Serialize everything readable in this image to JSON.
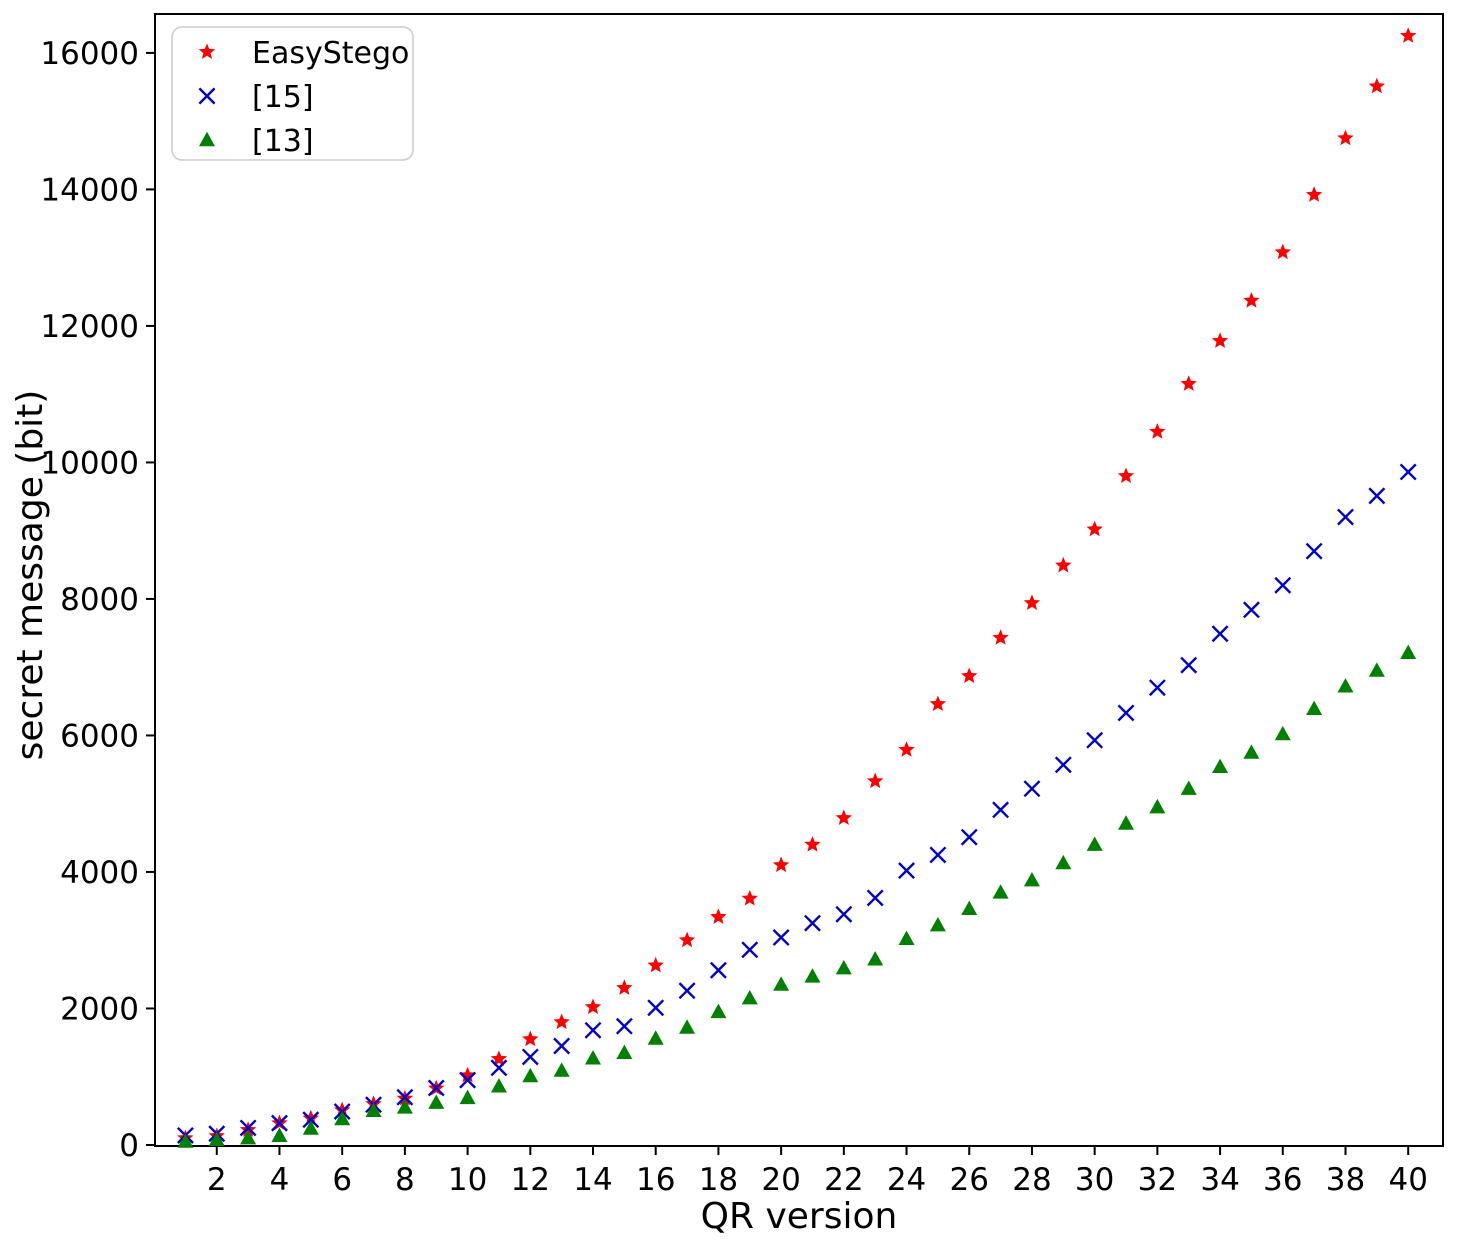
{
  "chart_data": {
    "type": "scatter",
    "title": "",
    "xlabel": "QR version",
    "ylabel": "secret message (bit)",
    "grid": false,
    "legend_position": "upper-left",
    "xlim": [
      0.03,
      41.11
    ],
    "ylim": [
      -15,
      16570
    ],
    "xticks": [
      2,
      4,
      6,
      8,
      10,
      12,
      14,
      16,
      18,
      20,
      22,
      24,
      26,
      28,
      30,
      32,
      34,
      36,
      38,
      40
    ],
    "yticks": [
      0,
      2000,
      4000,
      6000,
      8000,
      10000,
      12000,
      14000,
      16000
    ],
    "x": [
      1,
      2,
      3,
      4,
      5,
      6,
      7,
      8,
      9,
      10,
      11,
      12,
      13,
      14,
      15,
      16,
      17,
      18,
      19,
      20,
      21,
      22,
      23,
      24,
      25,
      26,
      27,
      28,
      29,
      30,
      31,
      32,
      33,
      34,
      35,
      36,
      37,
      38,
      39,
      40
    ],
    "series": [
      {
        "name": "EasyStego",
        "marker": "star",
        "color": "#ff0000",
        "values": [
          100,
          130,
          220,
          320,
          390,
          510,
          600,
          680,
          830,
          1020,
          1260,
          1550,
          1800,
          2020,
          2300,
          2630,
          3000,
          3340,
          3610,
          4100,
          4400,
          4790,
          5330,
          5790,
          6460,
          6870,
          7430,
          7940,
          8490,
          9020,
          9800,
          10450,
          11150,
          11780,
          12370,
          13080,
          13920,
          14750,
          15510,
          16250
        ]
      },
      {
        "name": "[15]",
        "marker": "x",
        "color": "#0000cd",
        "values": [
          140,
          165,
          250,
          320,
          370,
          490,
          590,
          700,
          835,
          950,
          1130,
          1290,
          1450,
          1680,
          1740,
          2010,
          2260,
          2560,
          2860,
          3040,
          3250,
          3380,
          3620,
          4020,
          4250,
          4510,
          4910,
          5220,
          5570,
          5930,
          6330,
          6700,
          7030,
          7490,
          7840,
          8200,
          8700,
          9200,
          9510,
          9860
        ]
      },
      {
        "name": "[13]",
        "marker": "triangle",
        "color": "#008000",
        "values": [
          50,
          75,
          100,
          135,
          240,
          380,
          500,
          550,
          620,
          690,
          860,
          1010,
          1090,
          1270,
          1350,
          1560,
          1720,
          1950,
          2150,
          2350,
          2470,
          2590,
          2720,
          3020,
          3220,
          3460,
          3700,
          3880,
          4130,
          4400,
          4710,
          4950,
          5220,
          5540,
          5750,
          6020,
          6390,
          6720,
          6950,
          7210
        ]
      }
    ],
    "axis_color": "#000000",
    "legend_border_color": "#cccccc",
    "background_color": "#ffffff"
  }
}
